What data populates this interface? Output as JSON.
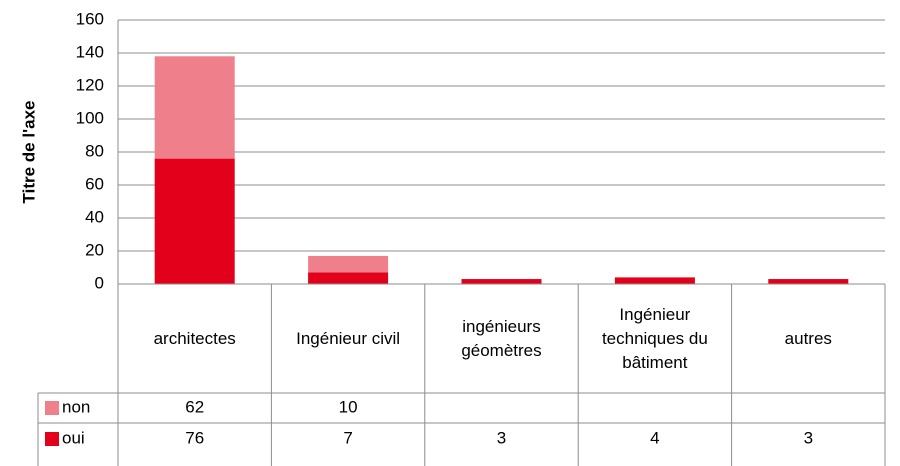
{
  "chart_data": {
    "type": "bar",
    "stacked": true,
    "y_axis_title": "Titre de l'axe",
    "categories": [
      "architectes",
      "Ingénieur civil",
      "ingénieurs géomètres",
      "Ingénieur techniques du bâtiment",
      "autres"
    ],
    "series": [
      {
        "name": "oui",
        "color": "#e2001a",
        "values": [
          76,
          7,
          3,
          4,
          3
        ]
      },
      {
        "name": "non",
        "color": "#f07f8c",
        "values": [
          62,
          10,
          null,
          null,
          null
        ]
      }
    ],
    "ylim": [
      0,
      160
    ],
    "yticks": [
      0,
      20,
      40,
      60,
      80,
      100,
      120,
      140,
      160
    ],
    "grid": true,
    "data_table": true
  }
}
